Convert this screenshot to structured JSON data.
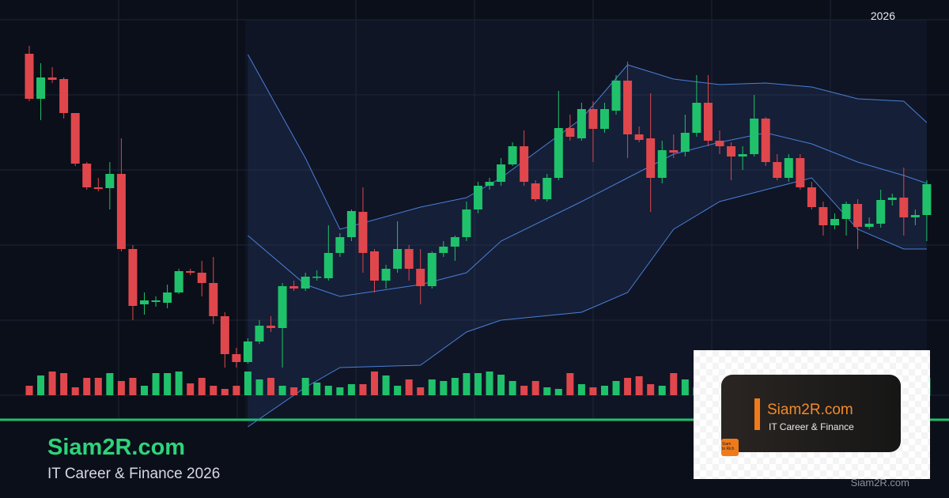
{
  "badge": "2026",
  "brand": {
    "title": "Siam2R.com",
    "tagline": "IT Career & Finance 2026"
  },
  "logo": {
    "title": "Siam2R.com",
    "tagline": "IT Career & Finance",
    "icon_lines": [
      "Siam",
      "to Rich"
    ]
  },
  "watermark": "Siam2R.com",
  "chart_data": {
    "type": "candlestick",
    "ylim": [
      70,
      600
    ],
    "up_color": "#1fc26b",
    "down_color": "#e0474c",
    "band_color": "#4a7fd8",
    "open": [
      532,
      475,
      502,
      500,
      457,
      393,
      363,
      362,
      380,
      285,
      215,
      218,
      217,
      230,
      257,
      255,
      242,
      200,
      152,
      142,
      168,
      188,
      185,
      238,
      235,
      250,
      248,
      280,
      300,
      332,
      282,
      245,
      260,
      285,
      260,
      238,
      280,
      288,
      300,
      335,
      365,
      370,
      392,
      415,
      368,
      348,
      375,
      438,
      425,
      462,
      437,
      460,
      498,
      430,
      425,
      375,
      410,
      408,
      432,
      470,
      422,
      415,
      402,
      405,
      450,
      395,
      375,
      400,
      363,
      338,
      315,
      323,
      342,
      313,
      317,
      347,
      350,
      325,
      328
    ],
    "high": [
      542,
      520,
      515,
      502,
      457,
      395,
      375,
      395,
      425,
      290,
      230,
      225,
      240,
      260,
      260,
      270,
      275,
      205,
      160,
      172,
      195,
      200,
      242,
      245,
      255,
      258,
      315,
      305,
      335,
      363,
      285,
      265,
      320,
      290,
      285,
      282,
      295,
      302,
      345,
      370,
      375,
      400,
      420,
      435,
      372,
      380,
      485,
      455,
      470,
      472,
      470,
      505,
      522,
      440,
      482,
      422,
      430,
      455,
      505,
      505,
      435,
      420,
      415,
      480,
      452,
      405,
      405,
      405,
      370,
      345,
      330,
      345,
      348,
      325,
      360,
      355,
      388,
      335,
      372
    ],
    "low": [
      472,
      448,
      495,
      450,
      390,
      360,
      358,
      335,
      282,
      195,
      202,
      212,
      210,
      228,
      252,
      225,
      190,
      135,
      135,
      140,
      165,
      180,
      135,
      232,
      232,
      245,
      245,
      275,
      295,
      255,
      230,
      235,
      255,
      245,
      215,
      235,
      275,
      270,
      295,
      330,
      360,
      365,
      390,
      365,
      345,
      345,
      372,
      422,
      422,
      395,
      432,
      455,
      400,
      420,
      332,
      368,
      400,
      402,
      427,
      415,
      405,
      372,
      385,
      402,
      390,
      372,
      370,
      360,
      335,
      302,
      310,
      302,
      285,
      310,
      312,
      340,
      302,
      315,
      295
    ],
    "close": [
      475,
      502,
      499,
      457,
      393,
      363,
      361,
      380,
      285,
      213,
      220,
      220,
      230,
      257,
      255,
      242,
      200,
      152,
      142,
      168,
      188,
      185,
      238,
      235,
      250,
      250,
      280,
      300,
      333,
      280,
      245,
      260,
      285,
      260,
      238,
      280,
      288,
      300,
      335,
      365,
      370,
      392,
      415,
      370,
      348,
      375,
      438,
      427,
      462,
      437,
      462,
      498,
      430,
      423,
      375,
      410,
      407,
      432,
      470,
      422,
      415,
      402,
      405,
      450,
      395,
      375,
      400,
      363,
      338,
      315,
      323,
      342,
      313,
      317,
      347,
      350,
      325,
      328,
      367
    ],
    "volume": [
      12,
      25,
      30,
      28,
      10,
      22,
      22,
      28,
      18,
      22,
      12,
      28,
      28,
      30,
      15,
      22,
      12,
      8,
      12,
      30,
      20,
      22,
      12,
      10,
      22,
      16,
      12,
      10,
      14,
      14,
      30,
      25,
      12,
      20,
      10,
      20,
      18,
      22,
      28,
      28,
      30,
      26,
      18,
      12,
      18,
      10,
      8,
      28,
      14,
      10,
      12,
      18,
      22,
      24,
      14,
      12,
      28,
      20,
      10,
      30,
      28,
      28,
      20,
      25,
      20,
      12,
      8,
      20,
      12,
      14,
      22,
      20,
      16,
      24,
      26,
      10,
      18,
      12,
      22
    ],
    "bands": {
      "x": [
        19,
        24,
        27,
        34,
        38,
        41,
        48,
        52,
        56,
        60,
        64,
        68,
        72,
        76,
        78
      ],
      "upper": [
        531,
        400,
        310,
        338,
        350,
        375,
        450,
        518,
        500,
        493,
        495,
        490,
        475,
        472,
        445
      ],
      "middle": [
        302,
        240,
        225,
        240,
        255,
        295,
        345,
        375,
        405,
        420,
        432,
        418,
        395,
        378,
        368
      ],
      "lower": [
        60,
        110,
        135,
        138,
        180,
        195,
        205,
        230,
        310,
        345,
        360,
        375,
        310,
        285,
        285
      ]
    }
  }
}
